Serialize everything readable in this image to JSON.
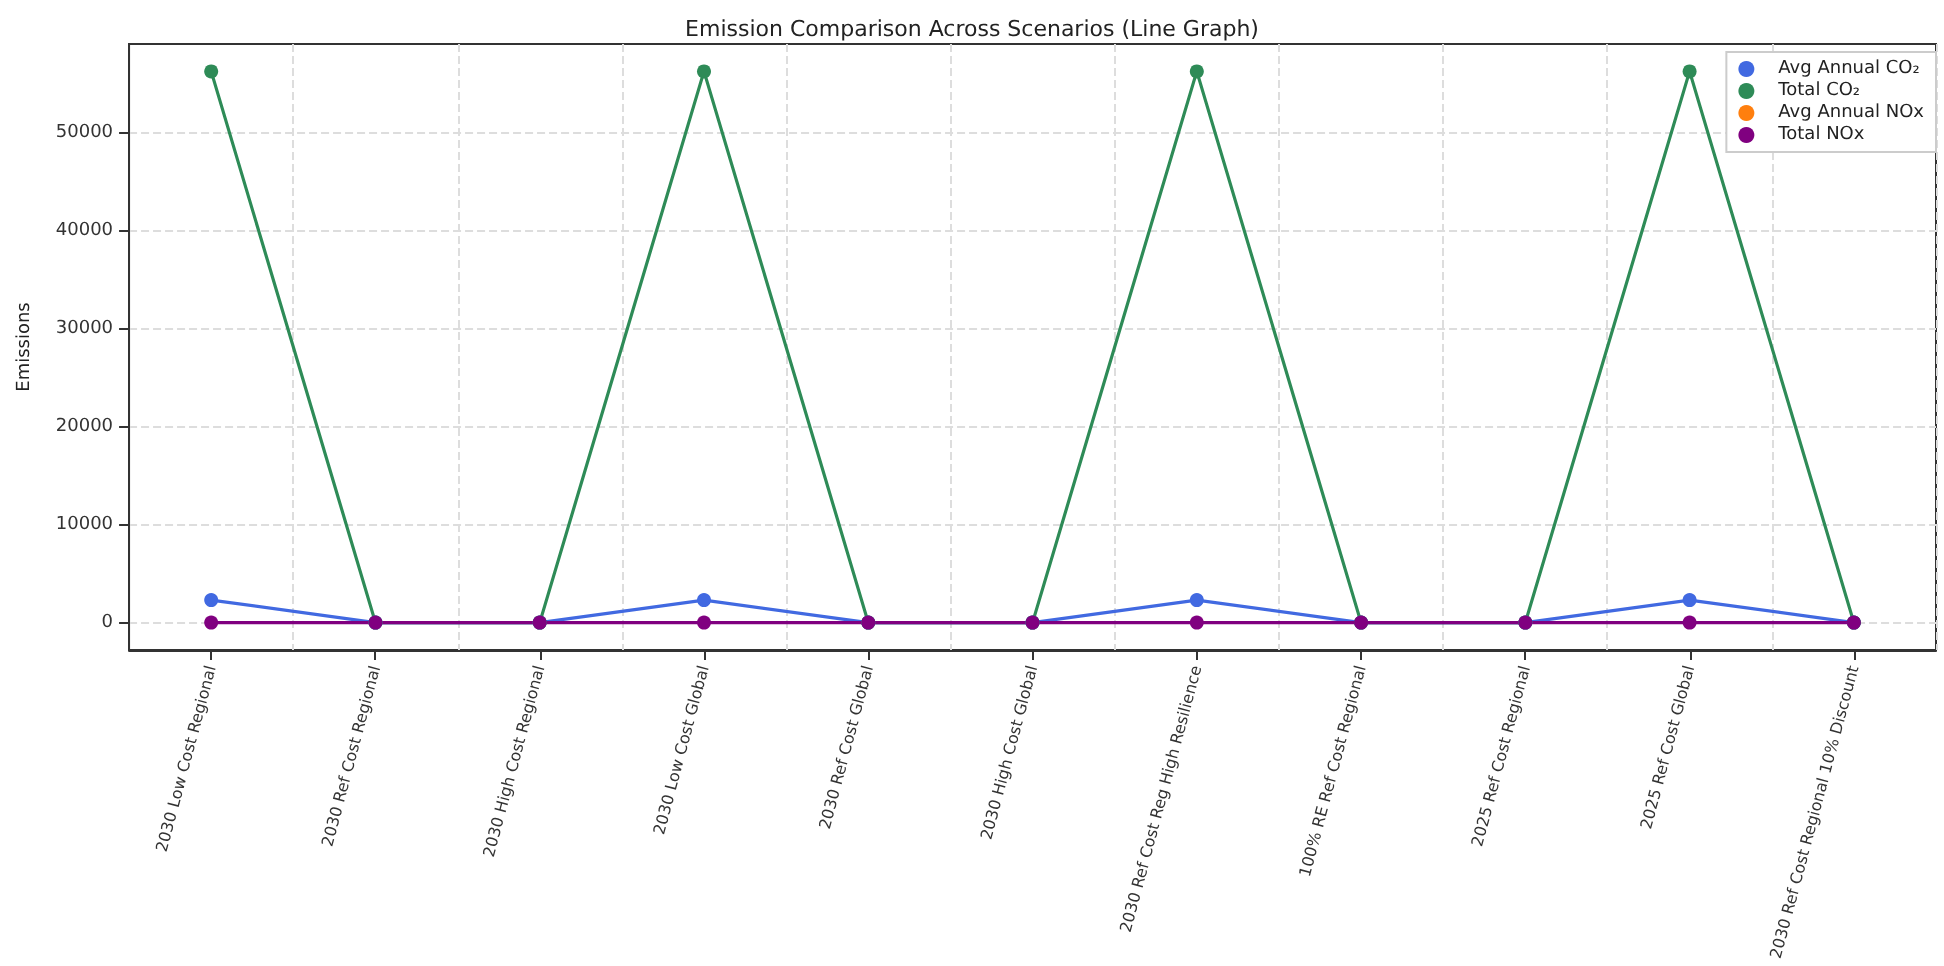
{
  "chart_data": {
    "type": "line",
    "title": "Emission Comparison Across Scenarios (Line Graph)",
    "ylabel": "Emissions",
    "categories": [
      "2030 Low Cost Regional",
      "2030 Ref Cost Regional",
      "2030 High Cost Regional",
      "2030 Low Cost Global",
      "2030 Ref Cost Global",
      "2030 High Cost Global",
      "2030 Ref Cost Reg High Resilience",
      "100% RE Ref Cost Regional",
      "2025 Ref Cost Regional",
      "2025 Ref Cost Global",
      "2030 Ref Cost Regional 10% Discount"
    ],
    "series": [
      {
        "name": "Avg Annual CO₂",
        "color": "#4169e1",
        "values": [
          2300,
          0,
          0,
          2300,
          0,
          0,
          2300,
          0,
          0,
          2300,
          0
        ]
      },
      {
        "name": "Total CO₂",
        "color": "#2e8b57",
        "values": [
          56300,
          0,
          0,
          56300,
          0,
          0,
          56300,
          0,
          0,
          56300,
          0
        ]
      },
      {
        "name": "Avg Annual NOx",
        "color": "#ff7f0e",
        "values": [
          null,
          null,
          null,
          null,
          null,
          null,
          null,
          null,
          null,
          null,
          null
        ]
      },
      {
        "name": "Total NOx",
        "color": "#800080",
        "values": [
          0,
          0,
          0,
          0,
          0,
          0,
          0,
          0,
          0,
          0,
          0
        ]
      }
    ],
    "ylim": [
      -2800,
      59100
    ],
    "yticks": [
      0,
      10000,
      20000,
      30000,
      40000,
      50000
    ],
    "grid": true,
    "legend": "top right",
    "marker": "circle",
    "line_style": "solid"
  }
}
